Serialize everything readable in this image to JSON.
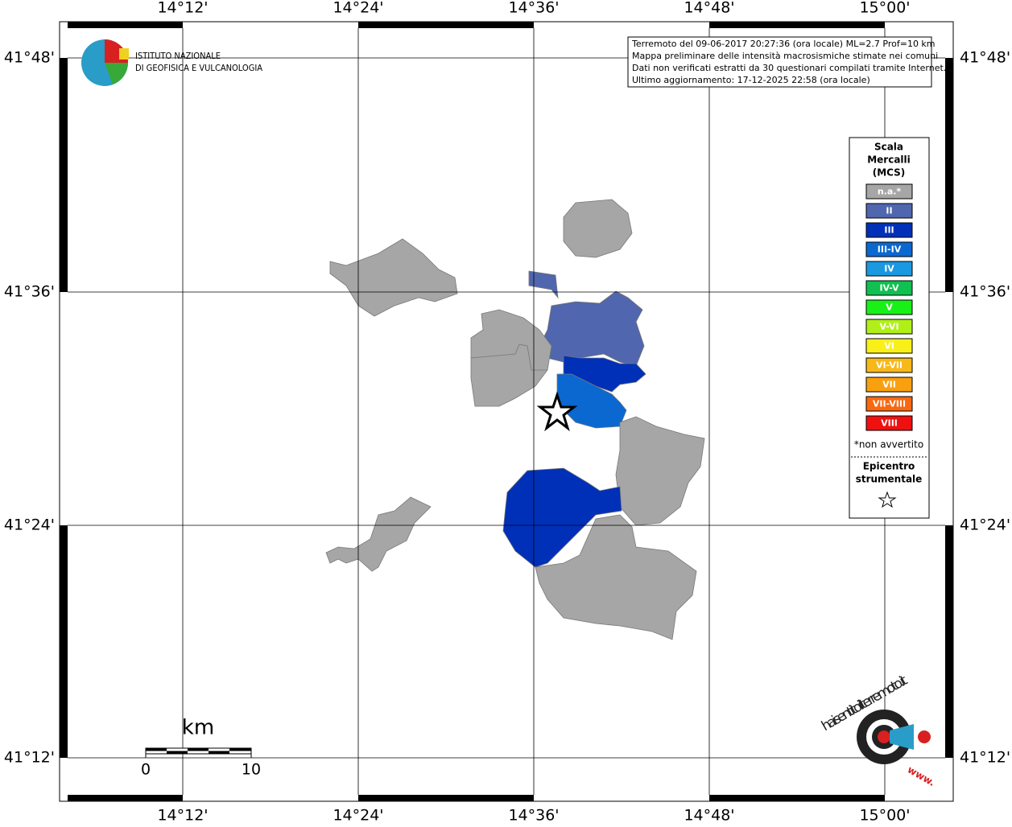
{
  "map": {
    "lon_labels": [
      "14°12'",
      "14°24'",
      "14°36'",
      "14°48'",
      "15°00'"
    ],
    "lat_labels": [
      "41°48'",
      "41°36'",
      "41°24'",
      "41°12'"
    ],
    "info": [
      "Terremoto del 09-06-2017 20:27:36 (ora locale) ML=2.7 Prof=10 km",
      "Mappa preliminare delle intensità macrosismiche stimate nei comuni",
      "Dati non verificati estratti da 30 questionari compilati tramite Internet.",
      "Ultimo aggiornamento: 17-12-2025 22:58 (ora locale)"
    ],
    "logo": [
      "ISTITUTO NAZIONALE",
      "DI GEOFISICA E VULCANOLOGIA"
    ],
    "legend": {
      "title": [
        "Scala",
        "Mercalli",
        "(MCS)"
      ],
      "items": [
        {
          "label": "n.a.*",
          "color": "#a6a6a6"
        },
        {
          "label": "II",
          "color": "#5066ae"
        },
        {
          "label": "III",
          "color": "#0030b8"
        },
        {
          "label": "III-IV",
          "color": "#0a68d0"
        },
        {
          "label": "IV",
          "color": "#1a98e0"
        },
        {
          "label": "IV-V",
          "color": "#10c050"
        },
        {
          "label": "V",
          "color": "#18f018"
        },
        {
          "label": "V-VI",
          "color": "#b0f018"
        },
        {
          "label": "VI",
          "color": "#f8f018"
        },
        {
          "label": "VI-VII",
          "color": "#f8b818"
        },
        {
          "label": "VII",
          "color": "#f8a010"
        },
        {
          "label": "VII-VIII",
          "color": "#f86810"
        },
        {
          "label": "VIII",
          "color": "#f01010"
        }
      ],
      "note": "*non avvertito",
      "epicentre": [
        "Epicentro",
        "strumentale"
      ]
    },
    "scale": {
      "unit": "km",
      "start": "0",
      "end": "10"
    },
    "badge": {
      "site": "haisentitoilterremoto.it",
      "www": "www."
    }
  }
}
